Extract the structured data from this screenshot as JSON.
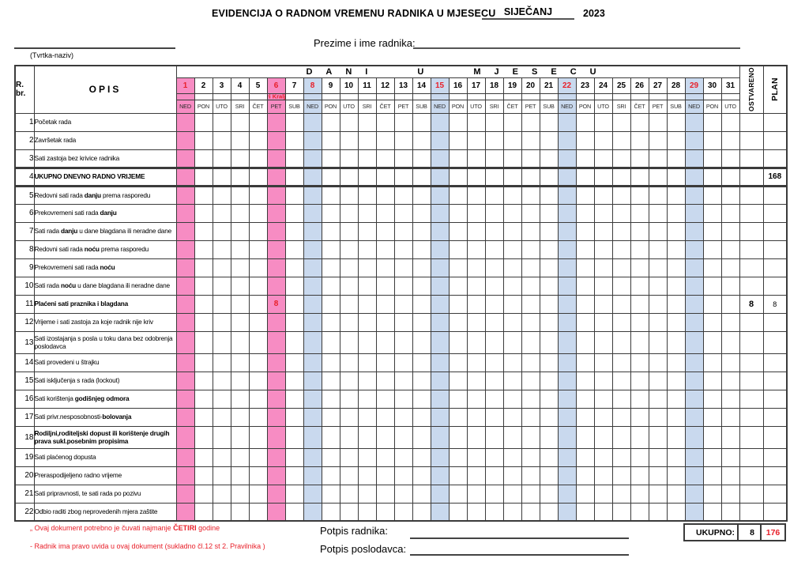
{
  "colors": {
    "pink": "#f78cc3",
    "blue": "#c9d9ee",
    "red": "#e8202a"
  },
  "title": {
    "text": "EVIDENCIJA O RADNOM VREMENU RADNIKA U MJESECU",
    "month": "SIJEČANJ",
    "year": "2023"
  },
  "company_label": "(Tvrtka-naziv)",
  "worker_label": "Prezime i ime radnika:",
  "table": {
    "rbr_label1": "R.",
    "rbr_label2": "br.",
    "opis_label": "OPIS",
    "days_header": "DANI U MJESECU",
    "ostvareno_label": "OSTVARENO",
    "plan_label": "PLAN",
    "holiday_note": "Tri Kralja",
    "holiday_note_day": 6,
    "num_days": 31,
    "day_names": [
      "NED",
      "PON",
      "UTO",
      "SRI",
      "ČET",
      "PET",
      "SUB"
    ],
    "pink_days": [
      1,
      6
    ],
    "blue_days": [
      8,
      15,
      22,
      29
    ],
    "red_number_days": [
      1,
      6,
      8,
      15,
      22,
      29
    ],
    "rows": [
      {
        "num": "1",
        "lines": [
          [
            {
              "t": "Početak rada"
            }
          ]
        ]
      },
      {
        "num": "2",
        "lines": [
          [
            {
              "t": "Završetak rada"
            }
          ]
        ]
      },
      {
        "num": "3",
        "lines": [
          [
            {
              "t": "Sati zastoja bez krivice radnika"
            }
          ]
        ]
      },
      {
        "num": "4",
        "lines": [
          [
            {
              "t": "UKUPNO DNEVNO RADNO VRIJEME",
              "b": true
            }
          ]
        ],
        "plan": "168",
        "plan_bold": true,
        "thick": true
      },
      {
        "num": "5",
        "lines": [
          [
            {
              "t": "Redovni sati rada "
            },
            {
              "t": "danju",
              "b": true
            },
            {
              "t": " prema rasporedu"
            }
          ]
        ]
      },
      {
        "num": "6",
        "lines": [
          [
            {
              "t": "Prekovremeni sati rada "
            },
            {
              "t": "danju",
              "b": true
            }
          ]
        ]
      },
      {
        "num": "7",
        "lines": [
          [
            {
              "t": "Sati rada "
            },
            {
              "t": "danju",
              "b": true
            },
            {
              "t": " u dane blagdana  ili neradne dane"
            }
          ]
        ]
      },
      {
        "num": "8",
        "lines": [
          [
            {
              "t": "Redovni sati rada "
            },
            {
              "t": "noću",
              "b": true
            },
            {
              "t": " prema rasporedu"
            }
          ]
        ]
      },
      {
        "num": "9",
        "lines": [
          [
            {
              "t": "Prekovremeni sati rada "
            },
            {
              "t": "noću",
              "b": true
            }
          ]
        ]
      },
      {
        "num": "10",
        "lines": [
          [
            {
              "t": "Sati rada "
            },
            {
              "t": "noću",
              "b": true
            },
            {
              "t": " u dane blagdana  ili neradne dane"
            }
          ]
        ]
      },
      {
        "num": "11",
        "lines": [
          [
            {
              "t": "Plaćeni sati praznika i blagdana",
              "b": true
            }
          ]
        ],
        "day_values": {
          "6": "8"
        },
        "ostvareno": "8",
        "plan": "8"
      },
      {
        "num": "12",
        "lines": [
          [
            {
              "t": "Vrijeme i sati zastoja za koje radnik nije kriv"
            }
          ]
        ]
      },
      {
        "num": "13",
        "lines": [
          [
            {
              "t": "Sati izostajanja s posla u toku dana bez odobrenja"
            }
          ],
          [
            {
              "t": "poslodavca"
            }
          ]
        ],
        "tall": true
      },
      {
        "num": "14",
        "lines": [
          [
            {
              "t": "Sati provedeni u štrajku"
            }
          ]
        ]
      },
      {
        "num": "15",
        "lines": [
          [
            {
              "t": "Sati isključenja s rada (lockout)"
            }
          ]
        ]
      },
      {
        "num": "16",
        "lines": [
          [
            {
              "t": "Sati korištenja "
            },
            {
              "t": "godišnjeg odmora",
              "b": true
            }
          ]
        ]
      },
      {
        "num": "17",
        "lines": [
          [
            {
              "t": "Sati privr.nesposobnosti-"
            },
            {
              "t": "bolovanja",
              "b": true
            }
          ]
        ]
      },
      {
        "num": "18",
        "lines": [
          [
            {
              "t": "Rodiljni,roditeljski dopust ili korištenje drugih",
              "b": true
            }
          ],
          [
            {
              "t": "prava sukl.posebnim propisima",
              "b": true
            }
          ]
        ],
        "tall": true
      },
      {
        "num": "19",
        "lines": [
          [
            {
              "t": "Sati plaćenog dopusta"
            }
          ]
        ]
      },
      {
        "num": "20",
        "lines": [
          [
            {
              "t": "Preraspodijeljeno radno vrijeme"
            }
          ]
        ]
      },
      {
        "num": "21",
        "lines": [
          [
            {
              "t": "Sati pripravnosti, te sati rada po pozivu"
            }
          ]
        ]
      },
      {
        "num": "22",
        "lines": [
          [
            {
              "t": "Odbio raditi zbog neprovedenih mjera zaštite"
            }
          ]
        ]
      }
    ]
  },
  "footer": {
    "notes": [
      [
        {
          "t": "„ Ovaj dokument potrebno je čuvati najmanje "
        },
        {
          "t": "ČETIRI",
          "b": true
        },
        {
          "t": " godine"
        }
      ],
      [
        {
          "t": "- Radnik ima pravo uvida u ovaj dokument (sukladno čl.12 st 2. Pravilnika )"
        }
      ]
    ],
    "ukupno_label": "UKUPNO:",
    "ukupno_ostvareno": "8",
    "ukupno_plan": "176",
    "signature_worker": "Potpis radnika:",
    "signature_employer": "Potpis poslodavca:"
  }
}
